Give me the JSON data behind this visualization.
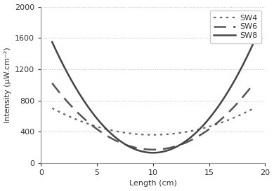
{
  "title": "",
  "xlabel": "Length (cm)",
  "ylabel": "Intensity (μW.cm⁻²)",
  "xlim": [
    0,
    20
  ],
  "ylim": [
    0,
    2000
  ],
  "xticks": [
    0,
    5,
    10,
    15,
    20
  ],
  "yticks": [
    0,
    400,
    800,
    1200,
    1600,
    2000
  ],
  "series": [
    {
      "label": "SW4",
      "style": "dotted",
      "color": "#666666",
      "linewidth": 1.6,
      "a": 4.2,
      "b": 10.0,
      "c": 360
    },
    {
      "label": "SW6",
      "style": "dashed",
      "color": "#555555",
      "linewidth": 1.8,
      "a": 10.5,
      "b": 10.0,
      "c": 170
    },
    {
      "label": "SW8",
      "style": "solid",
      "color": "#444444",
      "linewidth": 1.8,
      "a": 17.5,
      "b": 10.0,
      "c": 130
    }
  ],
  "background_color": "#ffffff",
  "grid_color": "#aaaaaa",
  "legend_loc": "upper right",
  "font_color": "#333333",
  "x_start": 1,
  "x_end": 19
}
